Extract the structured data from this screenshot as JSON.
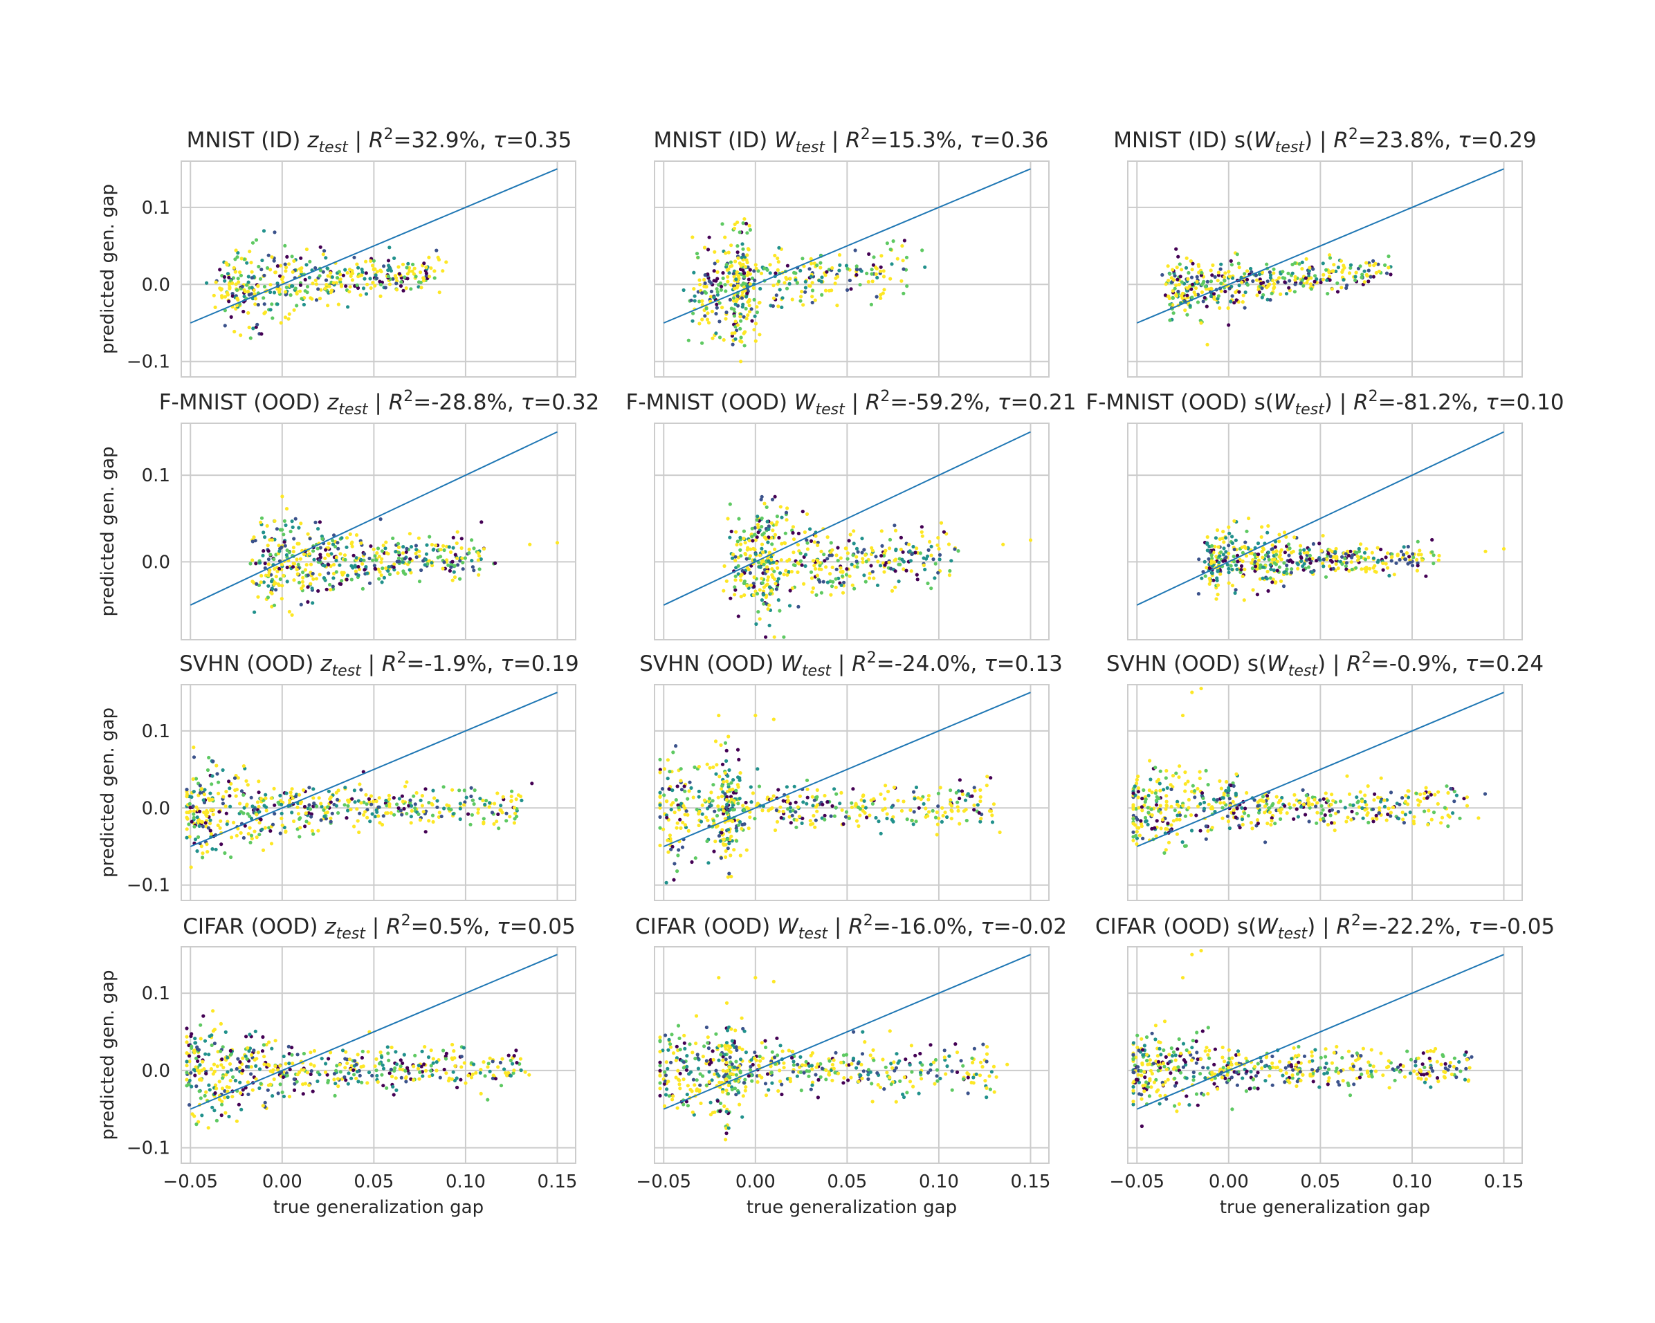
{
  "colors": {
    "grid": "#cccccc",
    "axes_edge": "#cccccc",
    "diagonal": "#1f77b4",
    "text": "#262626",
    "palette": [
      "#440154",
      "#3b528b",
      "#21918c",
      "#5ec962",
      "#fde725"
    ]
  },
  "figure": {
    "xlabel": "true generalization gap",
    "ylabel": "predicted gen. gap",
    "x_ticks": [
      "−0.05",
      "0.00",
      "0.05",
      "0.10",
      "0.15"
    ],
    "x_tick_values": [
      -0.05,
      0.0,
      0.05,
      0.1,
      0.15
    ],
    "y_ticks_rows_1_3_4": [
      "0.1",
      "0.0",
      "−0.1"
    ],
    "y_tick_values_rows_1_3_4": [
      0.1,
      0.0,
      -0.1
    ],
    "y_ticks_row_2": [
      "0.1",
      "0.0"
    ],
    "y_tick_values_row_2": [
      0.1,
      0.0
    ]
  },
  "chart_data": [
    {
      "type": "scatter",
      "title": "MNIST (ID)  z_test | R²=32.9%, τ=0.35",
      "t_dataset": "MNIST (ID) ",
      "t_var": "z",
      "t_sub": "test",
      "t_wrap": false,
      "t_metrics": " | R",
      "t_tail": "=32.9%, ",
      "t_tau": "=0.35",
      "dataset": "MNIST (ID)",
      "feature": "z_test",
      "r2": "32.9%",
      "tau": "0.35",
      "xlim": [
        -0.055,
        0.16
      ],
      "ylim": [
        -0.12,
        0.16
      ],
      "diagonal": [
        [
          -0.05,
          -0.05
        ],
        [
          0.15,
          0.15
        ]
      ],
      "cloud": {
        "x_center": 0.01,
        "x_spread": 0.055,
        "x_max": 0.085,
        "y_slope": 0.2,
        "y_spread": 0.012,
        "outliers": [
          [
            0.08,
            0.035
          ],
          [
            0.085,
            0.035
          ],
          [
            0.05,
            0.02
          ]
        ],
        "n": 420,
        "seed": 11
      }
    },
    {
      "type": "scatter",
      "title": "MNIST (ID) W_test | R²=15.3%, τ=0.36",
      "t_dataset": "MNIST (ID) ",
      "t_var": "W",
      "t_sub": "test",
      "t_wrap": false,
      "t_metrics": " | R",
      "t_tail": "=15.3%, ",
      "t_tau": "=0.36",
      "dataset": "MNIST (ID)",
      "feature": "W_test",
      "r2": "15.3%",
      "tau": "0.36",
      "xlim": [
        -0.055,
        0.16
      ],
      "ylim": [
        -0.12,
        0.16
      ],
      "diagonal": [
        [
          -0.05,
          -0.05
        ],
        [
          0.15,
          0.15
        ]
      ],
      "cloud": {
        "x_center": 0.01,
        "x_spread": 0.055,
        "x_max": 0.085,
        "y_slope": 0.25,
        "y_spread": 0.016,
        "spike": {
          "x": -0.008,
          "y_extent": 0.1
        },
        "outliers": [
          [
            -0.006,
            0.085
          ],
          [
            0.08,
            0.05
          ],
          [
            -0.008,
            -0.1
          ]
        ],
        "n": 440,
        "seed": 12
      }
    },
    {
      "type": "scatter",
      "title": "MNIST (ID)  s(W_test) | R²=23.8%, τ=0.29",
      "t_dataset": "MNIST (ID)  s(",
      "t_var": "W",
      "t_sub": "test",
      "t_wrap": true,
      "t_metrics": " | R",
      "t_tail": "=23.8%, ",
      "t_tau": "=0.29",
      "dataset": "MNIST (ID)",
      "feature": "s(W_test)",
      "r2": "23.8%",
      "tau": "0.29",
      "xlim": [
        -0.055,
        0.16
      ],
      "ylim": [
        -0.12,
        0.16
      ],
      "diagonal": [
        [
          -0.05,
          -0.05
        ],
        [
          0.15,
          0.15
        ]
      ],
      "cloud": {
        "x_center": 0.01,
        "x_spread": 0.055,
        "x_max": 0.085,
        "y_slope": 0.18,
        "y_spread": 0.009,
        "outliers": [
          [
            0.08,
            0.027
          ],
          [
            0.075,
            0.028
          ],
          [
            -0.015,
            -0.05
          ]
        ],
        "n": 400,
        "seed": 13
      }
    },
    {
      "type": "scatter",
      "title": "F-MNIST (OOD) z_test | R²=-28.8%, τ=0.32",
      "t_dataset": "F-MNIST (OOD) ",
      "t_var": "z",
      "t_sub": "test",
      "t_wrap": false,
      "t_metrics": " | R",
      "t_tail": "=-28.8%, ",
      "t_tau": "=0.32",
      "dataset": "F-MNIST (OOD)",
      "feature": "z_test",
      "r2": "-28.8%",
      "tau": "0.32",
      "xlim": [
        -0.055,
        0.16
      ],
      "ylim": [
        -0.09,
        0.16
      ],
      "diagonal": [
        [
          -0.05,
          -0.05
        ],
        [
          0.15,
          0.15
        ]
      ],
      "cloud": {
        "x_center": 0.03,
        "x_spread": 0.09,
        "x_max": 0.11,
        "x_min": -0.01,
        "y_slope": 0.06,
        "y_spread": 0.012,
        "outliers": [
          [
            0.15,
            0.022
          ],
          [
            0.135,
            0.02
          ],
          [
            0.11,
            0.015
          ]
        ],
        "n": 480,
        "seed": 21
      }
    },
    {
      "type": "scatter",
      "title": "F-MNIST (OOD) W_test | R²=-59.2%, τ=0.21",
      "t_dataset": "F-MNIST (OOD) ",
      "t_var": "W",
      "t_sub": "test",
      "t_wrap": false,
      "t_metrics": " | R",
      "t_tail": "=-59.2%, ",
      "t_tau": "=0.21",
      "dataset": "F-MNIST (OOD)",
      "feature": "W_test",
      "r2": "-59.2%",
      "tau": "0.21",
      "xlim": [
        -0.055,
        0.16
      ],
      "ylim": [
        -0.09,
        0.16
      ],
      "diagonal": [
        [
          -0.05,
          -0.05
        ],
        [
          0.15,
          0.15
        ]
      ],
      "cloud": {
        "x_center": 0.03,
        "x_spread": 0.09,
        "x_max": 0.11,
        "x_min": -0.01,
        "y_slope": 0.05,
        "y_spread": 0.014,
        "spike": {
          "x": 0.005,
          "y_extent": 0.08
        },
        "outliers": [
          [
            0.15,
            0.025
          ],
          [
            0.135,
            0.02
          ]
        ],
        "n": 500,
        "seed": 22
      }
    },
    {
      "type": "scatter",
      "title": "F-MNIST (OOD) s(W_test) | R²=-81.2%, τ=0.10",
      "t_dataset": "F-MNIST (OOD) s(",
      "t_var": "W",
      "t_sub": "test",
      "t_wrap": true,
      "t_metrics": " | R",
      "t_tail": "=-81.2%, ",
      "t_tau": "=0.10",
      "dataset": "F-MNIST (OOD)",
      "feature": "s(W_test)",
      "r2": "-81.2%",
      "tau": "0.10",
      "xlim": [
        -0.055,
        0.16
      ],
      "ylim": [
        -0.09,
        0.16
      ],
      "diagonal": [
        [
          -0.05,
          -0.05
        ],
        [
          0.15,
          0.15
        ]
      ],
      "cloud": {
        "x_center": 0.03,
        "x_spread": 0.09,
        "x_max": 0.11,
        "x_min": -0.01,
        "y_slope": 0.05,
        "y_spread": 0.008,
        "outliers": [
          [
            0.15,
            0.015
          ],
          [
            0.14,
            0.012
          ],
          [
            0.0,
            0.04
          ]
        ],
        "n": 460,
        "seed": 23
      }
    },
    {
      "type": "scatter",
      "title": "SVHN (OOD) z_test | R²=-1.9%, τ=0.19",
      "t_dataset": "SVHN (OOD) ",
      "t_var": "z",
      "t_sub": "test",
      "t_wrap": false,
      "t_metrics": " | R",
      "t_tail": "=-1.9%, ",
      "t_tau": "=0.19",
      "dataset": "SVHN (OOD)",
      "feature": "z_test",
      "r2": "-1.9%",
      "tau": "0.19",
      "xlim": [
        -0.055,
        0.16
      ],
      "ylim": [
        -0.12,
        0.16
      ],
      "diagonal": [
        [
          -0.05,
          -0.05
        ],
        [
          0.15,
          0.15
        ]
      ],
      "cloud": {
        "x_center": 0.02,
        "x_spread": 0.12,
        "x_max": 0.13,
        "x_min": -0.05,
        "y_slope": 0.02,
        "y_spread": 0.014,
        "outliers": [
          [
            0.13,
            0.015
          ],
          [
            0.125,
            0.015
          ]
        ],
        "n": 520,
        "seed": 31
      }
    },
    {
      "type": "scatter",
      "title": "SVHN (OOD) W_test | R²=-24.0%, τ=0.13",
      "t_dataset": "SVHN (OOD) ",
      "t_var": "W",
      "t_sub": "test",
      "t_wrap": false,
      "t_metrics": " | R",
      "t_tail": "=-24.0%, ",
      "t_tau": "=0.13",
      "dataset": "SVHN (OOD)",
      "feature": "W_test",
      "r2": "-24.0%",
      "tau": "0.13",
      "xlim": [
        -0.055,
        0.16
      ],
      "ylim": [
        -0.12,
        0.16
      ],
      "diagonal": [
        [
          -0.05,
          -0.05
        ],
        [
          0.15,
          0.15
        ]
      ],
      "cloud": {
        "x_center": 0.02,
        "x_spread": 0.12,
        "x_max": 0.13,
        "x_min": -0.05,
        "y_slope": 0.02,
        "y_spread": 0.016,
        "spike": {
          "x": -0.015,
          "y_extent": 0.1
        },
        "outliers": [
          [
            -0.02,
            0.12
          ],
          [
            0.0,
            0.12
          ],
          [
            0.01,
            0.115
          ],
          [
            0.13,
            0.005
          ]
        ],
        "n": 540,
        "seed": 32
      }
    },
    {
      "type": "scatter",
      "title": "SVHN (OOD) s(W_test) | R²=-0.9%, τ=0.24",
      "t_dataset": "SVHN (OOD) s(",
      "t_var": "W",
      "t_sub": "test",
      "t_wrap": true,
      "t_metrics": " | R",
      "t_tail": "=-0.9%, ",
      "t_tau": "=0.24",
      "dataset": "SVHN (OOD)",
      "feature": "s(W_test)",
      "r2": "-0.9%",
      "tau": "0.24",
      "xlim": [
        -0.055,
        0.16
      ],
      "ylim": [
        -0.12,
        0.16
      ],
      "diagonal": [
        [
          -0.05,
          -0.05
        ],
        [
          0.15,
          0.15
        ]
      ],
      "cloud": {
        "x_center": 0.02,
        "x_spread": 0.12,
        "x_max": 0.13,
        "x_min": -0.05,
        "y_slope": 0.02,
        "y_spread": 0.012,
        "outliers": [
          [
            -0.015,
            0.155
          ],
          [
            -0.02,
            0.15
          ],
          [
            -0.025,
            0.12
          ],
          [
            0.13,
            0.014
          ]
        ],
        "n": 500,
        "seed": 33
      }
    },
    {
      "type": "scatter",
      "title": "CIFAR (OOD) z_test | R²=0.5%, τ=0.05",
      "t_dataset": "CIFAR (OOD) ",
      "t_var": "z",
      "t_sub": "test",
      "t_wrap": false,
      "t_metrics": " | R",
      "t_tail": "=0.5%, ",
      "t_tau": "=0.05",
      "dataset": "CIFAR (OOD)",
      "feature": "z_test",
      "r2": "0.5%",
      "tau": "0.05",
      "xlim": [
        -0.055,
        0.16
      ],
      "ylim": [
        -0.12,
        0.16
      ],
      "diagonal": [
        [
          -0.05,
          -0.05
        ],
        [
          0.15,
          0.15
        ]
      ],
      "cloud": {
        "x_center": 0.02,
        "x_spread": 0.12,
        "x_max": 0.13,
        "x_min": -0.05,
        "y_slope": 0.02,
        "y_spread": 0.014,
        "outliers": [
          [
            0.13,
            0.015
          ],
          [
            0.12,
            0.015
          ]
        ],
        "n": 520,
        "seed": 41
      }
    },
    {
      "type": "scatter",
      "title": "CIFAR (OOD) W_test | R²=-16.0%, τ=-0.02",
      "t_dataset": "CIFAR (OOD) ",
      "t_var": "W",
      "t_sub": "test",
      "t_wrap": false,
      "t_metrics": " | R",
      "t_tail": "=-16.0%, ",
      "t_tau": "=-0.02",
      "dataset": "CIFAR (OOD)",
      "feature": "W_test",
      "r2": "-16.0%",
      "tau": "-0.02",
      "xlim": [
        -0.055,
        0.16
      ],
      "ylim": [
        -0.12,
        0.16
      ],
      "diagonal": [
        [
          -0.05,
          -0.05
        ],
        [
          0.15,
          0.15
        ]
      ],
      "cloud": {
        "x_center": 0.02,
        "x_spread": 0.12,
        "x_max": 0.13,
        "x_min": -0.05,
        "y_slope": 0.02,
        "y_spread": 0.016,
        "spike": {
          "x": -0.015,
          "y_extent": 0.1
        },
        "outliers": [
          [
            -0.02,
            0.12
          ],
          [
            0.0,
            0.12
          ],
          [
            0.01,
            0.115
          ],
          [
            0.13,
            0.005
          ]
        ],
        "n": 540,
        "seed": 42
      }
    },
    {
      "type": "scatter",
      "title": "CIFAR (OOD) s(W_test) | R²=-22.2%, τ=-0.05",
      "t_dataset": "CIFAR (OOD) s(",
      "t_var": "W",
      "t_sub": "test",
      "t_wrap": true,
      "t_metrics": " | R",
      "t_tail": "=-22.2%, ",
      "t_tau": "=-0.05",
      "dataset": "CIFAR (OOD)",
      "feature": "s(W_test)",
      "r2": "-22.2%",
      "tau": "-0.05",
      "xlim": [
        -0.055,
        0.16
      ],
      "ylim": [
        -0.12,
        0.16
      ],
      "diagonal": [
        [
          -0.05,
          -0.05
        ],
        [
          0.15,
          0.15
        ]
      ],
      "cloud": {
        "x_center": 0.02,
        "x_spread": 0.12,
        "x_max": 0.13,
        "x_min": -0.05,
        "y_slope": 0.02,
        "y_spread": 0.012,
        "outliers": [
          [
            -0.015,
            0.155
          ],
          [
            -0.02,
            0.15
          ],
          [
            -0.025,
            0.12
          ],
          [
            0.13,
            0.014
          ]
        ],
        "n": 500,
        "seed": 43
      }
    }
  ]
}
